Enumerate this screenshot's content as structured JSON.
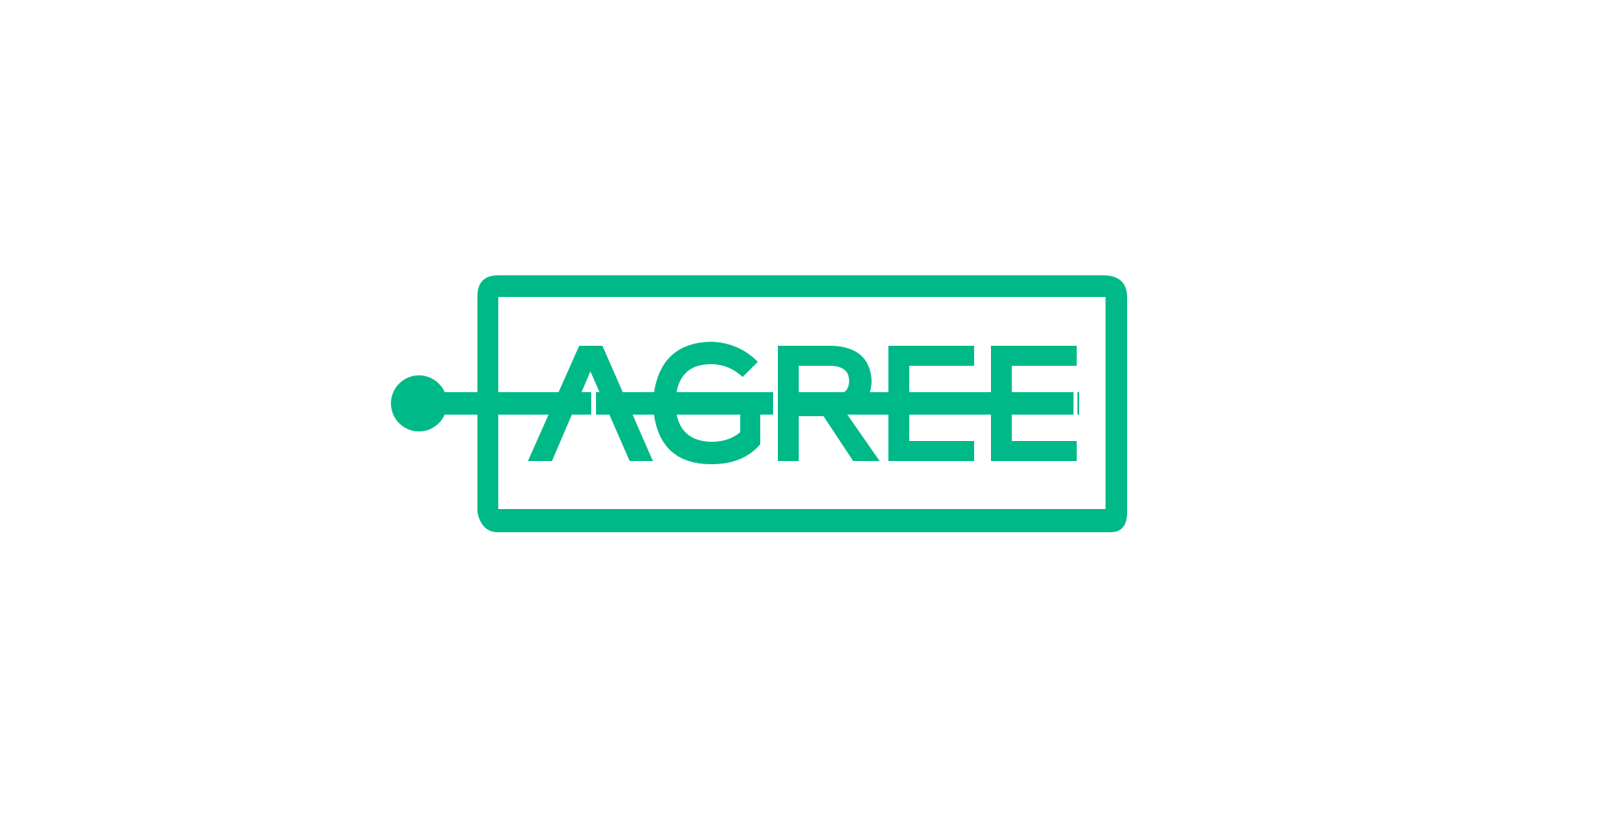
{
  "logo": {
    "wordmark": "AGREE",
    "brand_color": "#00B988",
    "background_color": "#FFFFFF",
    "icon": "tag-with-string-logo"
  }
}
